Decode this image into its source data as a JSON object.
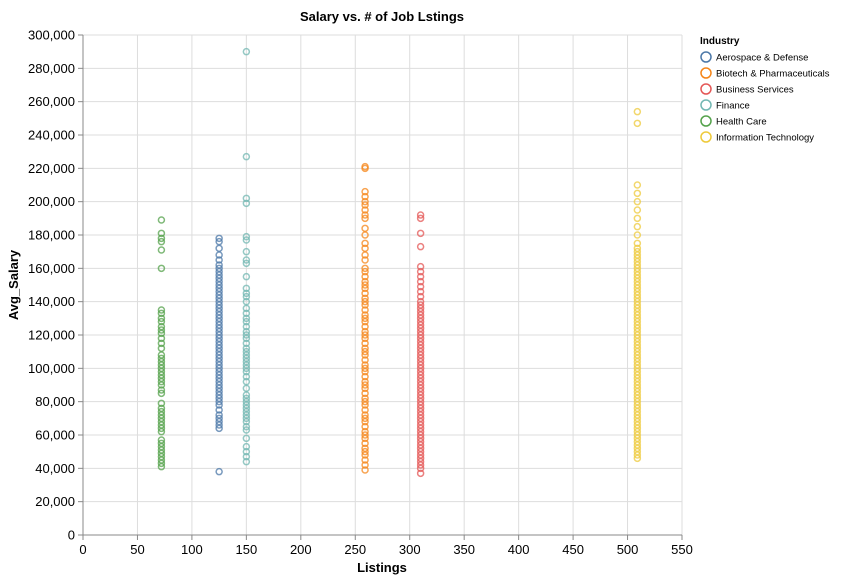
{
  "chart_data": {
    "type": "scatter",
    "title": "Salary vs. # of Job Lstings",
    "xlabel": "Listings",
    "ylabel": "Avg_Salary",
    "xlim": [
      0,
      550
    ],
    "ylim": [
      0,
      300000
    ],
    "x_ticks": [
      "0",
      "50",
      "100",
      "150",
      "200",
      "250",
      "300",
      "350",
      "400",
      "450",
      "500",
      "550"
    ],
    "y_ticks": [
      "0",
      "20,000",
      "40,000",
      "60,000",
      "80,000",
      "100,000",
      "120,000",
      "140,000",
      "160,000",
      "180,000",
      "200,000",
      "220,000",
      "240,000",
      "260,000",
      "280,000",
      "300,000"
    ],
    "grid": true,
    "legend_title": "Industry",
    "legend_position": "top-right",
    "series": [
      {
        "name": "Aerospace & Defense",
        "color": "#4c78a8",
        "x": 125,
        "values": [
          38000,
          64000,
          66000,
          68000,
          70000,
          72000,
          75000,
          78000,
          80000,
          82000,
          84000,
          86000,
          88000,
          90000,
          92000,
          94000,
          96000,
          98000,
          100000,
          102000,
          104000,
          106000,
          108000,
          110000,
          112000,
          114000,
          116000,
          118000,
          120000,
          122000,
          124000,
          126000,
          128000,
          130000,
          132000,
          134000,
          136000,
          138000,
          140000,
          142000,
          144000,
          146000,
          148000,
          150000,
          152000,
          154000,
          156000,
          158000,
          160000,
          162000,
          165000,
          168000,
          172000,
          176000,
          178000
        ]
      },
      {
        "name": "Biotech & Pharmaceuticals",
        "color": "#f58518",
        "x": 259,
        "values": [
          39000,
          42000,
          45000,
          48000,
          50000,
          52000,
          55000,
          58000,
          60000,
          62000,
          65000,
          68000,
          70000,
          72000,
          75000,
          78000,
          80000,
          82000,
          85000,
          88000,
          90000,
          92000,
          95000,
          98000,
          100000,
          102000,
          105000,
          108000,
          110000,
          112000,
          115000,
          118000,
          120000,
          122000,
          125000,
          128000,
          130000,
          132000,
          135000,
          138000,
          140000,
          142000,
          145000,
          148000,
          150000,
          152000,
          155000,
          158000,
          160000,
          165000,
          168000,
          172000,
          175000,
          180000,
          184000,
          190000,
          192000,
          195000,
          198000,
          200000,
          203000,
          206000,
          220000,
          221000
        ]
      },
      {
        "name": "Business Services",
        "color": "#e45756",
        "x": 310,
        "values": [
          37000,
          40000,
          42000,
          44000,
          46000,
          48000,
          50000,
          52000,
          54000,
          56000,
          58000,
          60000,
          62000,
          64000,
          66000,
          68000,
          70000,
          72000,
          74000,
          76000,
          78000,
          80000,
          82000,
          84000,
          86000,
          88000,
          90000,
          92000,
          94000,
          96000,
          98000,
          100000,
          102000,
          104000,
          106000,
          108000,
          110000,
          112000,
          114000,
          116000,
          118000,
          120000,
          122000,
          124000,
          126000,
          128000,
          130000,
          132000,
          134000,
          136000,
          138000,
          140000,
          143000,
          146000,
          149000,
          152000,
          155000,
          158000,
          161000,
          173000,
          181000,
          190000,
          192000
        ]
      },
      {
        "name": "Finance",
        "color": "#72b7b2",
        "x": 150,
        "values": [
          44000,
          47000,
          50000,
          53000,
          58000,
          63000,
          65000,
          68000,
          70000,
          72000,
          74000,
          76000,
          78000,
          80000,
          82000,
          84000,
          88000,
          92000,
          95000,
          98000,
          100000,
          102000,
          104000,
          106000,
          108000,
          110000,
          112000,
          115000,
          118000,
          120000,
          122000,
          125000,
          128000,
          130000,
          133000,
          136000,
          140000,
          143000,
          145000,
          148000,
          155000,
          163000,
          165000,
          170000,
          177000,
          179000,
          199000,
          202000,
          227000,
          290000
        ]
      },
      {
        "name": "Health Care",
        "color": "#54a24b",
        "x": 72,
        "values": [
          41000,
          43000,
          45000,
          47000,
          49000,
          51000,
          53000,
          55000,
          57000,
          62000,
          64000,
          66000,
          68000,
          70000,
          72000,
          74000,
          76000,
          79000,
          85000,
          87000,
          90000,
          92000,
          94000,
          96000,
          98000,
          100000,
          102000,
          104000,
          106000,
          108000,
          112000,
          115000,
          118000,
          121000,
          123000,
          125000,
          128000,
          130000,
          133000,
          135000,
          160000,
          171000,
          176000,
          178000,
          181000,
          189000
        ]
      },
      {
        "name": "Information Technology",
        "color": "#eeca3b",
        "x": 509,
        "values": [
          46000,
          48000,
          50000,
          52000,
          54000,
          56000,
          58000,
          60000,
          62000,
          64000,
          66000,
          68000,
          70000,
          72000,
          74000,
          76000,
          78000,
          80000,
          82000,
          84000,
          86000,
          88000,
          90000,
          92000,
          94000,
          96000,
          98000,
          100000,
          102000,
          104000,
          106000,
          108000,
          110000,
          112000,
          114000,
          116000,
          118000,
          120000,
          122000,
          124000,
          126000,
          128000,
          130000,
          132000,
          134000,
          136000,
          138000,
          140000,
          142000,
          144000,
          146000,
          148000,
          150000,
          152000,
          154000,
          156000,
          158000,
          160000,
          162000,
          164000,
          166000,
          168000,
          170000,
          172000,
          175000,
          180000,
          185000,
          190000,
          195000,
          200000,
          205000,
          210000,
          247000,
          254000
        ]
      }
    ]
  }
}
